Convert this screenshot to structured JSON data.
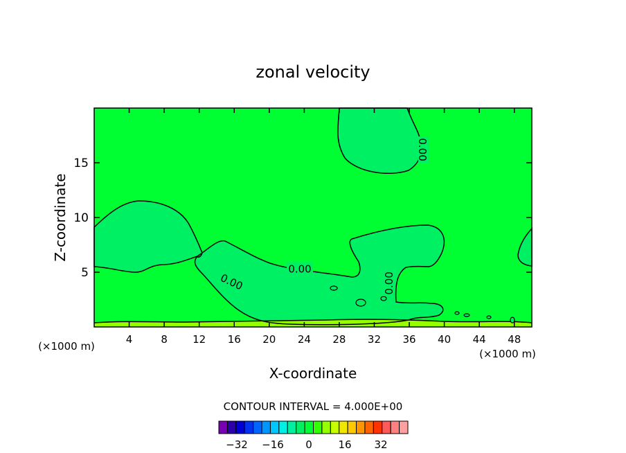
{
  "chart_data": {
    "type": "heatmap",
    "title": "zonal velocity",
    "xlabel": "X-coordinate",
    "ylabel": "Z-coordinate",
    "x_unit_left": "(×1000 m)",
    "x_unit_right": "(×1000 m)",
    "xlim": [
      0,
      50
    ],
    "ylim": [
      0,
      20
    ],
    "xticks": [
      4,
      8,
      12,
      16,
      20,
      24,
      28,
      32,
      36,
      40,
      44,
      48
    ],
    "yticks": [
      5,
      10,
      15
    ],
    "contour_interval_text": "CONTOUR INTERVAL = 4.000E+00",
    "contour_labels": [
      {
        "text": "0.00",
        "x": 23.5,
        "z": 5.3,
        "rotate": 0
      },
      {
        "text": "0.00",
        "x": 15.7,
        "z": 4.1,
        "rotate": 25
      },
      {
        "text": "0.00",
        "x": 33.7,
        "z": 4.0,
        "rotate": -90
      },
      {
        "text": "0.00",
        "x": 37.5,
        "z": 16.2,
        "rotate": 90
      }
    ],
    "field": {
      "background_value": 2,
      "regions": [
        {
          "name": "upper-lobe",
          "value": 0
        },
        {
          "name": "left-lobe",
          "value": 0
        },
        {
          "name": "central-band",
          "value": 0
        },
        {
          "name": "right-edge-lobe",
          "value": 0
        }
      ],
      "near_surface_value": 4
    },
    "colorbar": {
      "colors": [
        "#7a00b4",
        "#2c00a8",
        "#0000d4",
        "#0032f0",
        "#0064ff",
        "#0096ff",
        "#00c8ff",
        "#00f0e6",
        "#00f0a0",
        "#00f064",
        "#00ff32",
        "#32ff00",
        "#96ff00",
        "#c8ff00",
        "#f0e600",
        "#ffc800",
        "#ff9600",
        "#ff6400",
        "#ff3200",
        "#ff5a5a",
        "#ff8080",
        "#ffa0a0"
      ],
      "tick_labels": [
        "-32",
        "-16",
        "0",
        "16",
        "32"
      ],
      "tick_values": [
        -32,
        -16,
        0,
        16,
        32
      ],
      "range": [
        -40,
        44
      ]
    },
    "colors": {
      "background_field": "#00ff32",
      "zero_region": "#00f064",
      "surface_layer": "#96ff00"
    },
    "grid": false,
    "legend": "colorbar-bottom"
  }
}
